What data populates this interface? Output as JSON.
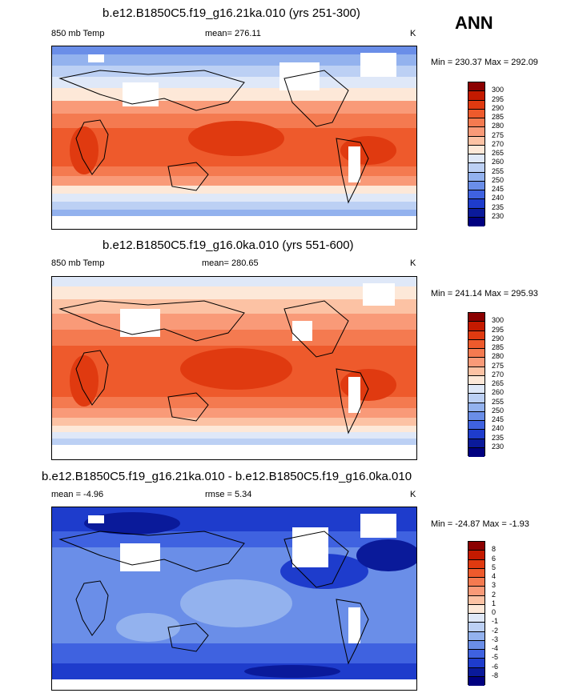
{
  "season": "ANN",
  "panels": [
    {
      "title": "b.e12.B1850C5.f19_g16.21ka.010 (yrs 251-300)",
      "left_label": "850 mb Temp",
      "center_label": "mean= 276.11",
      "units": "K",
      "minmax": "Min = 230.37 Max = 292.09",
      "levels": [
        "300",
        "295",
        "290",
        "285",
        "280",
        "275",
        "270",
        "265",
        "260",
        "255",
        "250",
        "245",
        "240",
        "235",
        "230"
      ],
      "colors": [
        "#8b0000",
        "#c41a00",
        "#e03a10",
        "#ee5a2c",
        "#f47a50",
        "#f99a78",
        "#fcc2a4",
        "#fde8d8",
        "#dfe8f8",
        "#bcd0f4",
        "#93b2ee",
        "#6a8ee8",
        "#3f62e0",
        "#1e3ccc",
        "#0a1a9a",
        "#000080"
      ]
    },
    {
      "title": "b.e12.B1850C5.f19_g16.0ka.010 (yrs 551-600)",
      "left_label": "850 mb Temp",
      "center_label": "mean= 280.65",
      "units": "K",
      "minmax": "Min = 241.14 Max = 295.93",
      "levels": [
        "300",
        "295",
        "290",
        "285",
        "280",
        "275",
        "270",
        "265",
        "260",
        "255",
        "250",
        "245",
        "240",
        "235",
        "230"
      ],
      "colors": [
        "#8b0000",
        "#c41a00",
        "#e03a10",
        "#ee5a2c",
        "#f47a50",
        "#f99a78",
        "#fcc2a4",
        "#fde8d8",
        "#dfe8f8",
        "#bcd0f4",
        "#93b2ee",
        "#6a8ee8",
        "#3f62e0",
        "#1e3ccc",
        "#0a1a9a",
        "#000080"
      ]
    },
    {
      "title": "b.e12.B1850C5.f19_g16.21ka.010 - b.e12.B1850C5.f19_g16.0ka.010",
      "left_label": "mean =  -4.96",
      "center_label": "rmse =   5.34",
      "units": "K",
      "minmax": "Min = -24.87 Max =  -1.93",
      "levels": [
        "8",
        "6",
        "5",
        "4",
        "3",
        "2",
        "1",
        "0",
        "-1",
        "-2",
        "-3",
        "-4",
        "-5",
        "-6",
        "-8"
      ],
      "colors": [
        "#8b0000",
        "#c41a00",
        "#e03a10",
        "#ee5a2c",
        "#f47a50",
        "#f99a78",
        "#fcc2a4",
        "#fde8d8",
        "#dfe8f8",
        "#bcd0f4",
        "#93b2ee",
        "#6a8ee8",
        "#3f62e0",
        "#1e3ccc",
        "#0a1a9a",
        "#000080"
      ]
    }
  ]
}
